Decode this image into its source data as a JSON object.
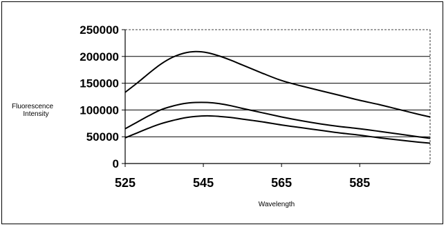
{
  "chart_data": {
    "type": "line",
    "title": "",
    "xlabel": "Wavelength",
    "ylabel_lines": [
      "Fluorescence",
      "Intensity"
    ],
    "xlim": [
      525,
      603
    ],
    "ylim": [
      0,
      250000
    ],
    "xticks": [
      525,
      545,
      565,
      585
    ],
    "yticks": [
      0,
      50000,
      100000,
      150000,
      200000,
      250000
    ],
    "grid": "horizontal",
    "legend": "none",
    "line_color": "#000000",
    "series": [
      {
        "x": [
          525,
          528,
          531,
          534,
          537,
          540,
          543,
          546,
          549,
          552,
          555,
          560,
          565,
          570,
          575,
          580,
          585,
          590,
          595,
          600,
          603
        ],
        "values": [
          133000,
          150000,
          168000,
          185000,
          198000,
          206000,
          209000,
          207000,
          201000,
          193000,
          184000,
          169000,
          155000,
          145000,
          136000,
          127000,
          118000,
          110000,
          101000,
          92000,
          87000
        ]
      },
      {
        "x": [
          525,
          528,
          531,
          534,
          537,
          540,
          543,
          546,
          549,
          552,
          555,
          560,
          565,
          570,
          575,
          580,
          585,
          590,
          595,
          600,
          603
        ],
        "values": [
          65000,
          77000,
          89000,
          100000,
          107000,
          112000,
          114000,
          114000,
          112000,
          108000,
          103000,
          95000,
          87000,
          80000,
          74000,
          69000,
          65000,
          60000,
          55000,
          50000,
          47000
        ]
      },
      {
        "x": [
          525,
          528,
          531,
          534,
          537,
          540,
          543,
          546,
          549,
          552,
          555,
          560,
          565,
          570,
          575,
          580,
          585,
          590,
          595,
          600,
          603
        ],
        "values": [
          48000,
          57000,
          66000,
          74000,
          80000,
          85000,
          88000,
          89000,
          88000,
          86000,
          83000,
          78000,
          72000,
          67000,
          62000,
          57000,
          53000,
          48000,
          44000,
          40000,
          38000
        ]
      }
    ]
  }
}
